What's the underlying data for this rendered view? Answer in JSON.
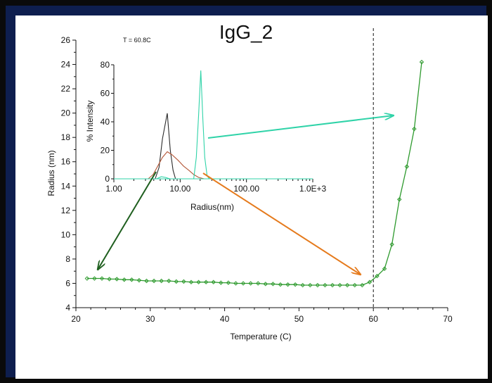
{
  "chart_data": [
    {
      "type": "line",
      "title": "IgG_2",
      "xlabel": "Temperature (C)",
      "ylabel": "Radius (nm)",
      "xlim": [
        20,
        70
      ],
      "ylim": [
        4,
        26
      ],
      "x_ticks": [
        20,
        30,
        40,
        50,
        60,
        70
      ],
      "y_ticks": [
        4,
        6,
        8,
        10,
        12,
        14,
        16,
        18,
        20,
        22,
        24,
        26
      ],
      "grid": false,
      "vline_x": 60,
      "series": [
        {
          "color": "#2e9a2e",
          "points": [
            [
              21.5,
              6.4
            ],
            [
              22.5,
              6.4
            ],
            [
              23.5,
              6.4
            ],
            [
              24.5,
              6.35
            ],
            [
              25.5,
              6.35
            ],
            [
              26.5,
              6.3
            ],
            [
              27.5,
              6.3
            ],
            [
              28.5,
              6.25
            ],
            [
              29.5,
              6.2
            ],
            [
              30.5,
              6.2
            ],
            [
              31.5,
              6.2
            ],
            [
              32.5,
              6.2
            ],
            [
              33.5,
              6.15
            ],
            [
              34.5,
              6.15
            ],
            [
              35.5,
              6.1
            ],
            [
              36.5,
              6.1
            ],
            [
              37.5,
              6.1
            ],
            [
              38.5,
              6.1
            ],
            [
              39.5,
              6.05
            ],
            [
              40.5,
              6.05
            ],
            [
              41.5,
              6.0
            ],
            [
              42.5,
              6.0
            ],
            [
              43.5,
              6.0
            ],
            [
              44.5,
              6.0
            ],
            [
              45.5,
              5.95
            ],
            [
              46.5,
              5.95
            ],
            [
              47.5,
              5.9
            ],
            [
              48.5,
              5.9
            ],
            [
              49.5,
              5.9
            ],
            [
              50.5,
              5.85
            ],
            [
              51.5,
              5.85
            ],
            [
              52.5,
              5.85
            ],
            [
              53.5,
              5.85
            ],
            [
              54.5,
              5.85
            ],
            [
              55.5,
              5.85
            ],
            [
              56.5,
              5.85
            ],
            [
              57.5,
              5.85
            ],
            [
              58.5,
              5.85
            ],
            [
              59.5,
              6.1
            ],
            [
              60.5,
              6.6
            ],
            [
              61.5,
              7.2
            ],
            [
              62.5,
              9.2
            ],
            [
              63.5,
              12.9
            ],
            [
              64.5,
              15.6
            ],
            [
              65.5,
              18.7
            ],
            [
              66.5,
              24.2
            ]
          ]
        }
      ]
    },
    {
      "type": "line",
      "title": "T = 60.8C",
      "xlabel": "Radius(nm)",
      "ylabel": "% Intensity",
      "xscale": "log",
      "xlim": [
        1,
        1000
      ],
      "ylim": [
        0,
        80
      ],
      "x_tick_labels": [
        "1.00",
        "10.00",
        "100.00",
        "1.0E+3"
      ],
      "x_tick_values": [
        1,
        10,
        100,
        1000
      ],
      "y_ticks": [
        0,
        20,
        40,
        60,
        80
      ],
      "series": [
        {
          "color": "#2a2a2a",
          "points": [
            [
              1,
              0
            ],
            [
              4.2,
              0
            ],
            [
              4.8,
              8
            ],
            [
              5.4,
              28
            ],
            [
              6.4,
              46
            ],
            [
              7.1,
              20
            ],
            [
              7.8,
              6
            ],
            [
              8.5,
              0
            ],
            [
              1000,
              0
            ]
          ]
        },
        {
          "color": "#b5593a",
          "points": [
            [
              1,
              0
            ],
            [
              3.3,
              0
            ],
            [
              3.9,
              3
            ],
            [
              4.6,
              9
            ],
            [
              5.4,
              15
            ],
            [
              6.4,
              19
            ],
            [
              7.5,
              17
            ],
            [
              9.3,
              13
            ],
            [
              11.2,
              9
            ],
            [
              13.5,
              6
            ],
            [
              16,
              3
            ],
            [
              19,
              1
            ],
            [
              23,
              0
            ],
            [
              1000,
              0
            ]
          ]
        },
        {
          "color": "#2fd3a8",
          "points": [
            [
              1,
              0
            ],
            [
              16,
              0
            ],
            [
              17.5,
              15
            ],
            [
              19,
              45
            ],
            [
              20.5,
              76
            ],
            [
              22,
              42
            ],
            [
              23.5,
              15
            ],
            [
              25.5,
              2
            ],
            [
              27.5,
              0
            ],
            [
              1000,
              0
            ]
          ]
        },
        {
          "color": "#2fd3a8",
          "points": [
            [
              1,
              0
            ],
            [
              4.4,
              0
            ],
            [
              5.2,
              1.5
            ],
            [
              6,
              1
            ],
            [
              7,
              0
            ],
            [
              1000,
              0
            ]
          ]
        }
      ]
    }
  ]
}
